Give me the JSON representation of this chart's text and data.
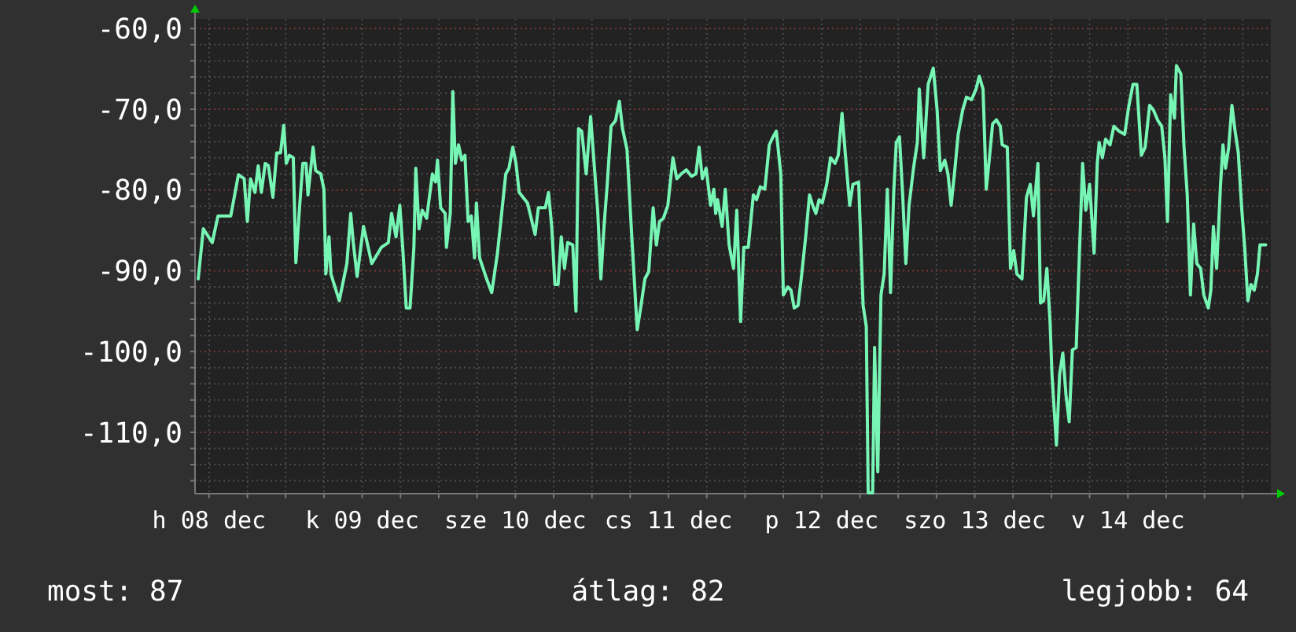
{
  "chart_data": {
    "type": "line",
    "xlim": [
      "--12-08T09:48",
      "--12-15T10:24"
    ],
    "ylim": [
      -117.6,
      -58.8
    ],
    "grid": true,
    "xticks": [
      {
        "value": "--12-08T12:00",
        "label": "h 08 dec"
      },
      {
        "value": "--12-08T18:00",
        "label": null
      },
      {
        "value": "--12-09T00:00",
        "label": null
      },
      {
        "value": "--12-09T06:00",
        "label": null
      },
      {
        "value": "--12-09T12:00",
        "label": "k 09 dec"
      },
      {
        "value": "--12-09T18:00",
        "label": null
      },
      {
        "value": "--12-10T00:00",
        "label": null
      },
      {
        "value": "--12-10T06:00",
        "label": null
      },
      {
        "value": "--12-10T12:00",
        "label": "sze 10 dec"
      },
      {
        "value": "--12-10T18:00",
        "label": null
      },
      {
        "value": "--12-11T00:00",
        "label": null
      },
      {
        "value": "--12-11T06:00",
        "label": null
      },
      {
        "value": "--12-11T12:00",
        "label": "cs 11 dec"
      },
      {
        "value": "--12-11T18:00",
        "label": null
      },
      {
        "value": "--12-12T00:00",
        "label": null
      },
      {
        "value": "--12-12T06:00",
        "label": null
      },
      {
        "value": "--12-12T12:00",
        "label": "p 12 dec"
      },
      {
        "value": "--12-12T18:00",
        "label": null
      },
      {
        "value": "--12-13T00:00",
        "label": null
      },
      {
        "value": "--12-13T06:00",
        "label": null
      },
      {
        "value": "--12-13T12:00",
        "label": "szo 13 dec"
      },
      {
        "value": "--12-13T18:00",
        "label": null
      },
      {
        "value": "--12-14T00:00",
        "label": null
      },
      {
        "value": "--12-14T06:00",
        "label": null
      },
      {
        "value": "--12-14T12:00",
        "label": "v 14 dec"
      },
      {
        "value": "--12-14T18:00",
        "label": null
      },
      {
        "value": "--12-15T00:00",
        "label": null
      },
      {
        "value": "--12-15T06:00",
        "label": null
      }
    ],
    "yticks": [
      {
        "value": -116,
        "label": null
      },
      {
        "value": -114,
        "label": null
      },
      {
        "value": -112,
        "label": null
      },
      {
        "value": -110,
        "label": "-110,0"
      },
      {
        "value": -108,
        "label": null
      },
      {
        "value": -106,
        "label": null
      },
      {
        "value": -104,
        "label": null
      },
      {
        "value": -102,
        "label": null
      },
      {
        "value": -100,
        "label": "-100,0"
      },
      {
        "value": -98,
        "label": null
      },
      {
        "value": -96,
        "label": null
      },
      {
        "value": -94,
        "label": null
      },
      {
        "value": -92,
        "label": null
      },
      {
        "value": -90,
        "label": "-90,0"
      },
      {
        "value": -88,
        "label": null
      },
      {
        "value": -86,
        "label": null
      },
      {
        "value": -84,
        "label": null
      },
      {
        "value": -82,
        "label": null
      },
      {
        "value": -80,
        "label": "-80,0"
      },
      {
        "value": -78,
        "label": null
      },
      {
        "value": -76,
        "label": null
      },
      {
        "value": -74,
        "label": null
      },
      {
        "value": -72,
        "label": null
      },
      {
        "value": -70,
        "label": "-70,0"
      },
      {
        "value": -68,
        "label": null
      },
      {
        "value": -66,
        "label": null
      },
      {
        "value": -64,
        "label": null
      },
      {
        "value": -62,
        "label": null
      },
      {
        "value": -60,
        "label": "-60,0"
      }
    ],
    "annotations": [
      "most: 87",
      "átlag: 82",
      "legjobb: 64"
    ],
    "series": [
      {
        "color": "#77f5b5",
        "x": [
          "--12-08T10:18",
          "--12-08T11:06",
          "--12-08T12:30",
          "--12-08T13:24",
          "--12-08T15:24",
          "--12-08T16:36",
          "--12-08T17:30",
          "--12-08T18:00",
          "--12-08T18:30",
          "--12-08T19:12",
          "--12-08T19:42",
          "--12-08T20:12",
          "--12-08T20:48",
          "--12-08T21:18",
          "--12-08T22:00",
          "--12-08T22:36",
          "--12-08T23:12",
          "--12-08T23:42",
          "--12-09T00:06",
          "--12-09T00:36",
          "--12-09T01:12",
          "--12-09T01:36",
          "--12-09T02:12",
          "--12-09T02:42",
          "--12-09T03:12",
          "--12-09T03:30",
          "--12-09T04:18",
          "--12-09T04:42",
          "--12-09T05:30",
          "--12-09T06:00",
          "--12-09T06:18",
          "--12-09T06:48",
          "--12-09T07:06",
          "--12-09T08:24",
          "--12-09T09:36",
          "--12-09T10:12",
          "--12-09T10:36",
          "--12-09T11:12",
          "--12-09T12:12",
          "--12-09T13:30",
          "--12-09T15:00",
          "--12-09T16:06",
          "--12-09T16:36",
          "--12-09T17:18",
          "--12-09T17:54",
          "--12-09T18:24",
          "--12-09T18:54",
          "--12-09T19:30",
          "--12-09T20:06",
          "--12-09T20:24",
          "--12-09T20:54",
          "--12-09T21:24",
          "--12-09T22:06",
          "--12-09T23:00",
          "--12-09T23:30",
          "--12-09T23:48",
          "--12-10T00:18",
          "--12-10T01:00",
          "--12-10T01:12",
          "--12-10T01:48",
          "--12-10T02:12",
          "--12-10T02:36",
          "--12-10T03:06",
          "--12-10T03:36",
          "--12-10T04:06",
          "--12-10T04:36",
          "--12-10T05:06",
          "--12-10T05:36",
          "--12-10T05:54",
          "--12-10T06:24",
          "--12-10T07:30",
          "--12-10T08:18",
          "--12-10T09:12",
          "--12-10T10:30",
          "--12-10T11:00",
          "--12-10T11:36",
          "--12-10T12:06",
          "--12-10T12:36",
          "--12-10T13:54",
          "--12-10T15:06",
          "--12-10T15:36",
          "--12-10T16:42",
          "--12-10T17:12",
          "--12-10T17:42",
          "--12-10T18:12",
          "--12-10T18:42",
          "--12-10T19:12",
          "--12-10T19:42",
          "--12-10T20:12",
          "--12-10T21:00",
          "--12-10T21:30",
          "--12-10T21:54",
          "--12-10T22:24",
          "--12-10T23:06",
          "--12-10T23:48",
          "--12-11T00:24",
          "--12-11T00:54",
          "--12-11T01:24",
          "--12-11T01:54",
          "--12-11T02:24",
          "--12-11T03:00",
          "--12-11T03:42",
          "--12-11T04:18",
          "--12-11T04:48",
          "--12-11T05:30",
          "--12-11T06:18",
          "--12-11T07:06",
          "--12-11T07:42",
          "--12-11T08:18",
          "--12-11T08:54",
          "--12-11T09:36",
          "--12-11T10:06",
          "--12-11T10:36",
          "--12-11T11:12",
          "--12-11T11:54",
          "--12-11T12:42",
          "--12-11T13:18",
          "--12-11T14:00",
          "--12-11T14:48",
          "--12-11T15:36",
          "--12-11T16:18",
          "--12-11T16:48",
          "--12-11T17:18",
          "--12-11T17:54",
          "--12-11T18:36",
          "--12-11T19:06",
          "--12-11T19:24",
          "--12-11T19:42",
          "--12-11T20:24",
          "--12-11T20:54",
          "--12-11T21:30",
          "--12-11T22:12",
          "--12-11T22:42",
          "--12-11T23:18",
          "--12-11T23:48",
          "--12-12T00:30",
          "--12-12T01:18",
          "--12-12T01:48",
          "--12-12T02:24",
          "--12-12T03:06",
          "--12-12T03:48",
          "--12-12T04:24",
          "--12-12T04:54",
          "--12-12T05:36",
          "--12-12T06:00",
          "--12-12T06:42",
          "--12-12T07:12",
          "--12-12T07:42",
          "--12-12T08:18",
          "--12-12T08:48",
          "--12-12T09:30",
          "--12-12T10:06",
          "--12-12T10:36",
          "--12-12T11:06",
          "--12-12T11:36",
          "--12-12T12:06",
          "--12-12T12:48",
          "--12-12T13:24",
          "--12-12T14:06",
          "--12-12T14:36",
          "--12-12T15:12",
          "--12-12T15:42",
          "--12-12T16:24",
          "--12-12T16:54",
          "--12-12T17:48",
          "--12-12T18:30",
          "--12-12T19:00",
          "--12-12T19:18",
          "--12-12T20:00",
          "--12-12T20:18",
          "--12-12T20:48",
          "--12-12T21:18",
          "--12-12T21:48",
          "--12-12T22:18",
          "--12-12T22:48",
          "--12-12T23:18",
          "--12-12T23:42",
          "--12-13T00:12",
          "--12-13T00:42",
          "--12-13T01:12",
          "--12-13T01:42",
          "--12-13T02:24",
          "--12-13T03:00",
          "--12-13T03:18",
          "--12-13T04:00",
          "--12-13T04:42",
          "--12-13T05:30",
          "--12-13T06:06",
          "--12-13T06:36",
          "--12-13T07:18",
          "--12-13T07:48",
          "--12-13T08:18",
          "--12-13T08:54",
          "--12-13T09:24",
          "--12-13T10:06",
          "--12-13T10:42",
          "--12-13T11:30",
          "--12-13T12:12",
          "--12-13T12:42",
          "--12-13T13:18",
          "--12-13T13:48",
          "--12-13T14:18",
          "--12-13T14:48",
          "--12-13T15:24",
          "--12-13T16:00",
          "--12-13T16:18",
          "--12-13T17:06",
          "--12-13T17:36",
          "--12-13T18:06",
          "--12-13T18:36",
          "--12-13T19:24",
          "--12-13T20:06",
          "--12-13T20:42",
          "--12-13T21:12",
          "--12-13T21:54",
          "--12-13T22:18",
          "--12-13T22:48",
          "--12-13T23:18",
          "--12-13T23:48",
          "--12-14T00:06",
          "--12-14T00:48",
          "--12-14T01:18",
          "--12-14T01:48",
          "--12-14T02:18",
          "--12-14T02:48",
          "--12-14T03:18",
          "--12-14T03:54",
          "--12-14T04:12",
          "--12-14T04:54",
          "--12-14T05:24",
          "--12-14T06:00",
          "--12-14T06:42",
          "--12-14T07:12",
          "--12-14T07:30",
          "--12-14T08:00",
          "--12-14T08:30",
          "--12-14T09:12",
          "--12-14T09:48",
          "--12-14T10:36",
          "--12-14T11:30",
          "--12-14T12:06",
          "--12-14T12:48",
          "--12-14T13:24",
          "--12-14T14:06",
          "--12-14T14:42",
          "--12-14T15:24",
          "--12-14T16:00",
          "--12-14T16:42",
          "--12-14T17:18",
          "--12-14T17:48",
          "--12-14T18:12",
          "--12-14T18:42",
          "--12-14T19:18",
          "--12-14T19:36",
          "--12-14T20:18",
          "--12-14T20:48",
          "--12-14T21:18",
          "--12-14T21:48",
          "--12-14T22:18",
          "--12-14T22:48",
          "--12-14T23:24",
          "--12-14T23:54",
          "--12-15T00:36",
          "--12-15T01:00",
          "--12-15T01:24",
          "--12-15T01:54",
          "--12-15T02:30",
          "--12-15T02:54",
          "--12-15T03:18",
          "--12-15T03:48",
          "--12-15T04:18",
          "--12-15T04:48",
          "--12-15T05:18",
          "--12-15T05:48",
          "--12-15T06:18",
          "--12-15T06:48",
          "--12-15T07:18",
          "--12-15T07:48",
          "--12-15T08:18",
          "--12-15T08:42",
          "--12-15T09:36"
        ],
        "values": [
          -91.0,
          -84.8,
          -86.5,
          -83.2,
          -83.2,
          -78.1,
          -78.6,
          -83.9,
          -78.6,
          -80.3,
          -77.0,
          -80.3,
          -76.7,
          -77.0,
          -80.9,
          -75.4,
          -75.4,
          -72.0,
          -76.7,
          -75.7,
          -76.0,
          -89.0,
          -81.9,
          -76.7,
          -76.7,
          -80.6,
          -74.7,
          -77.6,
          -78.0,
          -79.9,
          -90.4,
          -85.8,
          -90.4,
          -93.7,
          -89.1,
          -82.9,
          -86.5,
          -90.7,
          -84.5,
          -89.1,
          -87.1,
          -86.5,
          -82.9,
          -85.8,
          -81.9,
          -87.8,
          -94.6,
          -94.6,
          -87.1,
          -77.3,
          -84.8,
          -82.5,
          -83.5,
          -78.0,
          -79.0,
          -76.3,
          -82.2,
          -82.9,
          -87.1,
          -82.9,
          -67.8,
          -76.7,
          -74.4,
          -76.3,
          -75.7,
          -83.9,
          -83.2,
          -88.4,
          -81.6,
          -88.4,
          -91.0,
          -92.7,
          -87.8,
          -78.0,
          -77.3,
          -74.7,
          -76.7,
          -80.3,
          -81.6,
          -85.5,
          -82.2,
          -82.2,
          -80.3,
          -84.5,
          -91.7,
          -91.7,
          -85.8,
          -89.7,
          -86.5,
          -86.8,
          -95.0,
          -72.4,
          -72.7,
          -78.0,
          -70.9,
          -77.3,
          -82.5,
          -91.0,
          -84.5,
          -79.3,
          -72.1,
          -71.4,
          -69.0,
          -72.4,
          -75.0,
          -86.5,
          -97.3,
          -94.3,
          -91.0,
          -90.1,
          -82.2,
          -86.8,
          -83.9,
          -83.5,
          -81.9,
          -76.0,
          -78.6,
          -78.0,
          -77.5,
          -78.3,
          -78.0,
          -74.7,
          -78.6,
          -77.3,
          -81.9,
          -79.9,
          -82.9,
          -81.2,
          -84.5,
          -79.9,
          -86.8,
          -89.7,
          -82.5,
          -96.3,
          -87.1,
          -87.1,
          -80.6,
          -81.2,
          -79.6,
          -79.9,
          -74.4,
          -73.4,
          -72.7,
          -78.0,
          -93.0,
          -92.0,
          -92.4,
          -94.6,
          -94.3,
          -91.0,
          -85.8,
          -80.6,
          -81.9,
          -82.9,
          -81.2,
          -81.6,
          -79.3,
          -76.0,
          -76.7,
          -75.7,
          -70.5,
          -75.4,
          -81.9,
          -79.3,
          -79.0,
          -94.3,
          -96.9,
          -117.5,
          -117.5,
          -99.5,
          -114.9,
          -93.0,
          -90.4,
          -79.9,
          -92.7,
          -80.3,
          -74.1,
          -73.4,
          -80.6,
          -89.1,
          -81.9,
          -77.3,
          -74.1,
          -67.5,
          -76.0,
          -66.9,
          -64.9,
          -70.1,
          -77.6,
          -76.3,
          -78.0,
          -81.9,
          -77.3,
          -73.1,
          -70.1,
          -68.5,
          -68.8,
          -67.5,
          -65.9,
          -67.5,
          -79.9,
          -76.0,
          -71.8,
          -71.3,
          -72.1,
          -74.4,
          -74.7,
          -89.7,
          -87.5,
          -90.4,
          -91.0,
          -80.9,
          -79.3,
          -83.2,
          -76.7,
          -94.0,
          -93.7,
          -89.7,
          -96.3,
          -102.8,
          -111.6,
          -102.8,
          -100.2,
          -105.4,
          -108.7,
          -99.8,
          -99.5,
          -92.4,
          -76.7,
          -82.5,
          -79.3,
          -87.8,
          -76.7,
          -74.1,
          -76.0,
          -73.7,
          -74.4,
          -72.1,
          -72.7,
          -73.1,
          -69.8,
          -66.9,
          -66.9,
          -75.7,
          -74.7,
          -69.5,
          -70.1,
          -71.4,
          -72.1,
          -76.0,
          -83.9,
          -68.2,
          -71.1,
          -64.6,
          -65.6,
          -74.7,
          -80.6,
          -93.0,
          -84.2,
          -89.1,
          -89.7,
          -93.0,
          -94.6,
          -92.4,
          -84.5,
          -89.7,
          -79.6,
          -74.4,
          -77.3,
          -74.7,
          -69.5,
          -72.7,
          -75.4,
          -81.9,
          -87.1,
          -93.7,
          -91.7,
          -92.4,
          -90.4,
          -86.8,
          -86.8
        ]
      }
    ]
  }
}
